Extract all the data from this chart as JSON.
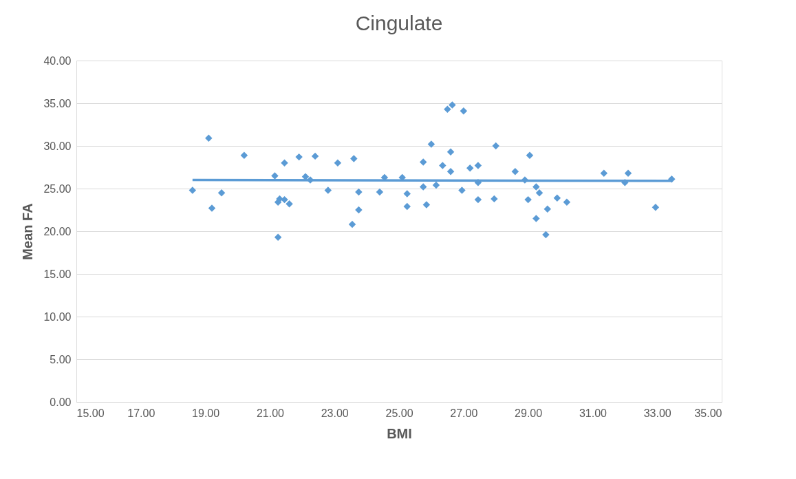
{
  "chart_data": {
    "type": "scatter",
    "title": "Cingulate",
    "xlabel": "BMI",
    "ylabel": "Mean FA",
    "xlim": [
      15,
      35
    ],
    "xticks": [
      {
        "value": 15,
        "label": "15.00"
      },
      {
        "value": 17,
        "label": "17.00"
      },
      {
        "value": 19,
        "label": "19.00"
      },
      {
        "value": 21,
        "label": "21.00"
      },
      {
        "value": 23,
        "label": "23.00"
      },
      {
        "value": 25,
        "label": "25.00"
      },
      {
        "value": 27,
        "label": "27.00"
      },
      {
        "value": 29,
        "label": "29.00"
      },
      {
        "value": 31,
        "label": "31.00"
      },
      {
        "value": 33,
        "label": "33.00"
      },
      {
        "value": 35,
        "label": "35.00"
      }
    ],
    "ylim": [
      0,
      40
    ],
    "yticks": [
      {
        "value": 0,
        "label": "0.00"
      },
      {
        "value": 5,
        "label": "5.00"
      },
      {
        "value": 10,
        "label": "10.00"
      },
      {
        "value": 15,
        "label": "15.00"
      },
      {
        "value": 20,
        "label": "20.00"
      },
      {
        "value": 25,
        "label": "25.00"
      },
      {
        "value": 30,
        "label": "30.00"
      },
      {
        "value": 35,
        "label": "35.00"
      },
      {
        "value": 40,
        "label": "40.00"
      }
    ],
    "grid": "y",
    "series": [
      {
        "marker": "diamond",
        "color": "#5b9bd5",
        "x": [
          18.6,
          19.1,
          19.2,
          19.5,
          20.2,
          21.15,
          21.25,
          21.3,
          21.25,
          21.45,
          21.45,
          21.6,
          21.9,
          22.1,
          22.25,
          22.4,
          22.8,
          23.1,
          23.55,
          23.6,
          23.75,
          23.75,
          24.4,
          24.55,
          25.1,
          25.25,
          25.25,
          25.75,
          25.75,
          25.85,
          26.0,
          26.15,
          26.35,
          26.5,
          26.65,
          26.6,
          26.6,
          26.95,
          27.0,
          27.2,
          27.45,
          27.45,
          27.45,
          27.95,
          28.0,
          28.6,
          28.9,
          29.0,
          29.05,
          29.25,
          29.25,
          29.35,
          29.55,
          29.6,
          29.9,
          30.2,
          31.35,
          32.0,
          32.1,
          32.95,
          33.45
        ],
        "values": [
          24.8,
          30.9,
          22.7,
          24.5,
          28.9,
          26.5,
          23.4,
          23.8,
          19.3,
          23.7,
          28.0,
          23.2,
          28.7,
          26.4,
          26.0,
          28.8,
          24.8,
          28.0,
          20.8,
          28.5,
          24.6,
          22.5,
          24.6,
          26.3,
          26.3,
          24.4,
          22.9,
          25.2,
          28.1,
          23.1,
          30.2,
          25.4,
          27.7,
          34.3,
          34.8,
          29.3,
          27.0,
          24.8,
          34.1,
          27.4,
          27.7,
          25.7,
          23.7,
          23.8,
          30.0,
          27.0,
          26.0,
          23.7,
          28.9,
          25.2,
          21.5,
          24.5,
          19.6,
          22.6,
          23.9,
          23.4,
          26.8,
          25.7,
          26.8,
          22.8,
          26.1
        ]
      },
      {
        "type": "line",
        "marker": "none",
        "color": "#5b9bd5",
        "x": [
          18.6,
          33.45
        ],
        "values": [
          26.0,
          25.9
        ]
      }
    ]
  }
}
